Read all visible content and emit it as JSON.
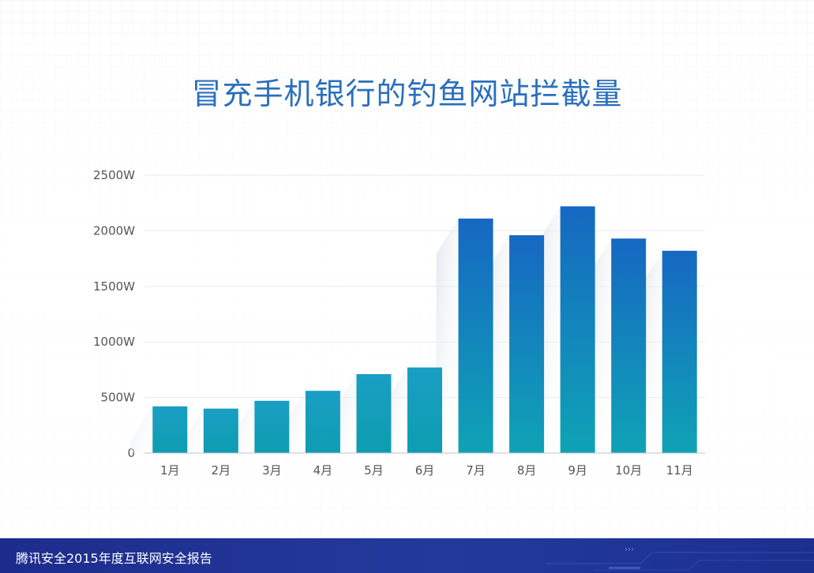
{
  "chart_data": {
    "type": "bar",
    "title": "冒充手机银行的钓鱼网站拦截量",
    "categories": [
      "1月",
      "2月",
      "3月",
      "4月",
      "5月",
      "6月",
      "7月",
      "8月",
      "9月",
      "10月",
      "11月"
    ],
    "values": [
      420,
      400,
      470,
      560,
      710,
      770,
      2110,
      1960,
      2220,
      1930,
      1820
    ],
    "y_tick_labels": [
      "0",
      "500W",
      "1000W",
      "1500W",
      "2000W",
      "2500W"
    ],
    "y_ticks": [
      0,
      500,
      1000,
      1500,
      2000,
      2500
    ],
    "ylim": [
      0,
      2500
    ],
    "xlabel": "",
    "ylabel": "",
    "grid": true,
    "colors": {
      "bar_top_low": "#1a9ec4",
      "bar_bottom_low": "#0d9db0",
      "bar_top_high": "#1668c2",
      "bar_bottom_high": "#0fa3b5",
      "title": "#2a6fbd"
    }
  },
  "footer": {
    "text": "腾讯安全2015年度互联网安全报告",
    "color": "#1d2c8c"
  }
}
